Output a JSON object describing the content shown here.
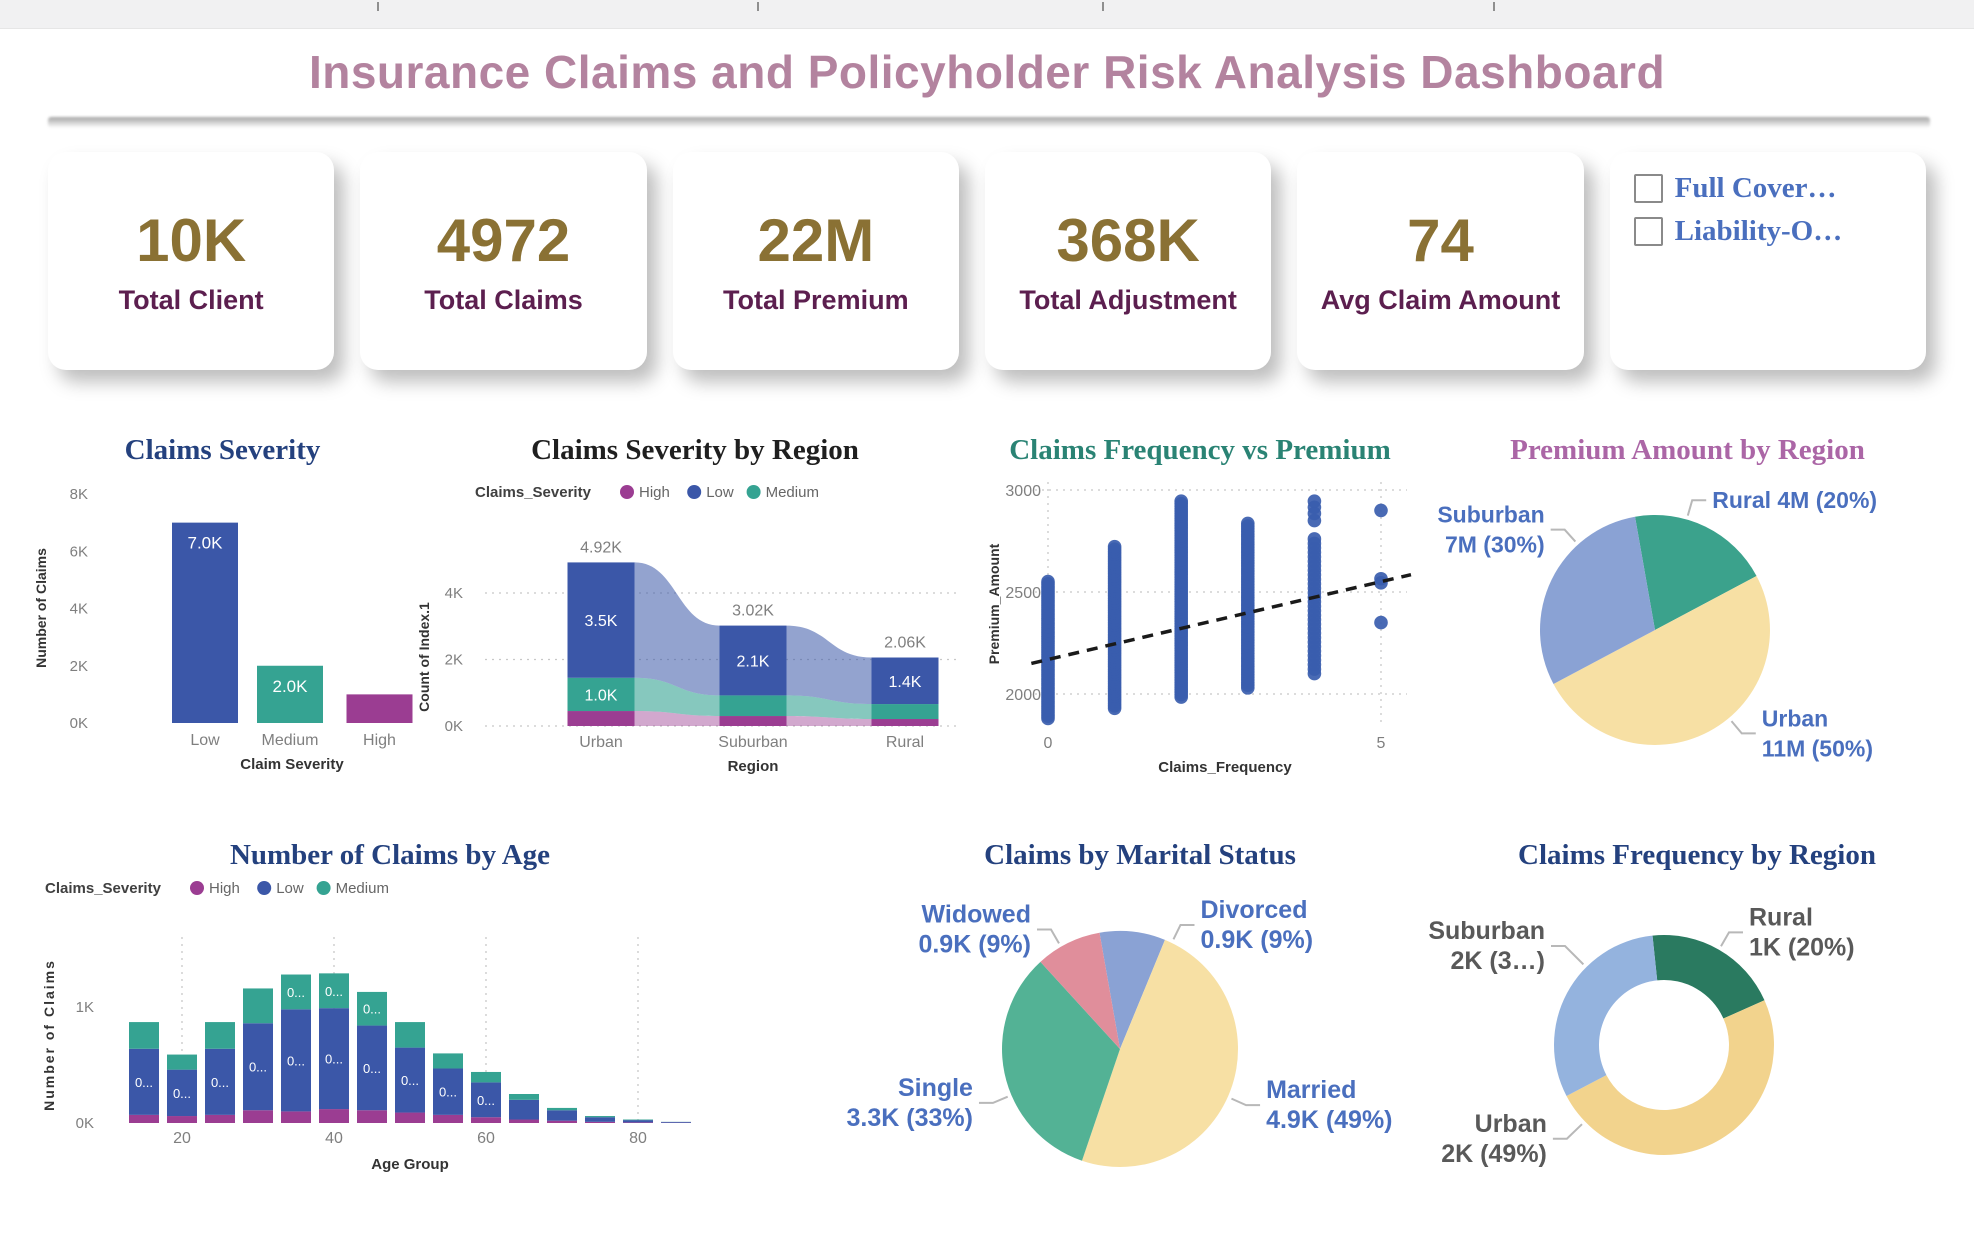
{
  "window": {
    "title": "Insurance Claims and Policyholder Risk Analysis Dashboard",
    "title_color": "#b3839f"
  },
  "kpis": [
    {
      "value": "10K",
      "label": "Total Client"
    },
    {
      "value": "4972",
      "label": "Total Claims"
    },
    {
      "value": "22M",
      "label": "Total Premium"
    },
    {
      "value": "368K",
      "label": "Total Adjustment"
    },
    {
      "value": "74",
      "label": "Avg Claim Amount"
    }
  ],
  "kpi_style": {
    "value_color": "#8a7134",
    "label_color": "#5c1f4f"
  },
  "filter_panel": {
    "options": [
      {
        "label": "Full Cover…",
        "checked": false
      },
      {
        "label": "Liability-O…",
        "checked": false
      }
    ],
    "label_color": "#4a6fbe"
  },
  "palette": {
    "severity_high": "#9b3d92",
    "severity_low": "#3b57a8",
    "severity_medium": "#35a392",
    "axis_text": "#7f7f7f",
    "axis_title": "#333333",
    "legend_text": "#666666",
    "pie_label_blue": "#4a6fbe",
    "donut_label_gray": "#595959",
    "leader_line": "#b8b8b8"
  },
  "chart_data": [
    {
      "id": "claims-severity",
      "type": "bar",
      "title": "Claims Severity",
      "title_color": "#24417e",
      "xlabel": "Claim Severity",
      "ylabel": "Number of Claims",
      "categories": [
        "Low",
        "Medium",
        "High"
      ],
      "values": [
        7000,
        2000,
        1000
      ],
      "bar_labels": [
        "7.0K",
        "2.0K",
        ""
      ],
      "bar_colors": [
        "#3b57a8",
        "#35a392",
        "#9b3d92"
      ],
      "ylim": [
        0,
        8000
      ],
      "yticks": [
        {
          "v": 0,
          "label": "0K"
        },
        {
          "v": 2000,
          "label": "2K"
        },
        {
          "v": 4000,
          "label": "4K"
        },
        {
          "v": 6000,
          "label": "6K"
        },
        {
          "v": 8000,
          "label": "8K"
        }
      ]
    },
    {
      "id": "claims-severity-by-region",
      "type": "ribbon",
      "title": "Claims Severity by Region",
      "title_color": "#1f1f1f",
      "legend_title": "Claims_Severity",
      "legend": [
        {
          "label": "High",
          "color": "#9b3d92"
        },
        {
          "label": "Low",
          "color": "#3b57a8"
        },
        {
          "label": "Medium",
          "color": "#35a392"
        }
      ],
      "xlabel": "Region",
      "ylabel": "Count of Index.1",
      "categories": [
        "Urban",
        "Suburban",
        "Rural"
      ],
      "totals": [
        "4.92K",
        "3.02K",
        "2.06K"
      ],
      "series": [
        {
          "name": "High",
          "color": "#9b3d92",
          "values": [
            450,
            300,
            210
          ],
          "labels": [
            "",
            "",
            ""
          ]
        },
        {
          "name": "Medium",
          "color": "#35a392",
          "values": [
            1000,
            620,
            450
          ],
          "labels": [
            "1.0K",
            "",
            ""
          ]
        },
        {
          "name": "Low",
          "color": "#3b57a8",
          "values": [
            3470,
            2100,
            1400
          ],
          "labels": [
            "3.5K",
            "2.1K",
            "1.4K"
          ]
        }
      ],
      "ylim": [
        0,
        5200
      ],
      "yticks": [
        {
          "v": 0,
          "label": "0K"
        },
        {
          "v": 2000,
          "label": "2K"
        },
        {
          "v": 4000,
          "label": "4K"
        }
      ]
    },
    {
      "id": "freq-vs-premium",
      "type": "scatter",
      "title": "Claims Frequency vs Premium",
      "title_color": "#2a8374",
      "xlabel": "Claims_Frequency",
      "ylabel": "Premium_Amount",
      "xlim": [
        -0.45,
        5.6
      ],
      "ylim": [
        1840,
        3060
      ],
      "xticks": [
        {
          "v": 0,
          "label": "0"
        },
        {
          "v": 5,
          "label": "5"
        }
      ],
      "yticks": [
        {
          "v": 2000,
          "label": "2000"
        },
        {
          "v": 2500,
          "label": "2500"
        },
        {
          "v": 3000,
          "label": "3000"
        }
      ],
      "dot_color": "#3a5dae",
      "columns": [
        {
          "x": 0,
          "ymin": 1880,
          "ymax": 2555,
          "step": 11
        },
        {
          "x": 1,
          "ymin": 1930,
          "ymax": 2725,
          "step": 12
        },
        {
          "x": 2,
          "ymin": 1985,
          "ymax": 2950,
          "step": 12
        },
        {
          "x": 3,
          "ymin": 2030,
          "ymax": 2845,
          "step": 13
        },
        {
          "x": 4,
          "ymin": 2100,
          "ymax": 2760,
          "step": 22
        }
      ],
      "extra_points": [
        {
          "x": 4,
          "y": 2850
        },
        {
          "x": 4,
          "y": 2885
        },
        {
          "x": 4,
          "y": 2915
        },
        {
          "x": 4,
          "y": 2945
        },
        {
          "x": 5,
          "y": 2350
        },
        {
          "x": 5,
          "y": 2545
        },
        {
          "x": 5,
          "y": 2565
        },
        {
          "x": 5,
          "y": 2900
        }
      ],
      "trendline": {
        "x1": -0.25,
        "y1": 2150,
        "x2": 5.45,
        "y2": 2585
      }
    },
    {
      "id": "premium-by-region",
      "type": "pie",
      "title": "Premium Amount by Region",
      "title_color": "#ab66a6",
      "label_color": "#4a6fbe",
      "start_angle": -10,
      "slices": [
        {
          "name": "Rural",
          "lines": [
            "Rural 4M (20%)"
          ],
          "value": "4M",
          "pct": 20,
          "color": "#3ba28c",
          "label_angle": 16,
          "label_r": 135
        },
        {
          "name": "Urban",
          "lines": [
            "Urban",
            "11M (50%)"
          ],
          "value": "11M",
          "pct": 50,
          "color": "#f7e0a4",
          "label_angle": 140,
          "label_r": 135
        },
        {
          "name": "Suburban",
          "lines": [
            "Suburban",
            "7M (30%)"
          ],
          "value": "7M",
          "pct": 30,
          "color": "#8aa2d4",
          "label_angle": 318,
          "label_r": 135
        }
      ]
    },
    {
      "id": "claims-by-age",
      "type": "stacked-bar",
      "title": "Number of Claims by Age",
      "title_color": "#24417e",
      "legend_title": "Claims_Severity",
      "legend": [
        {
          "label": "High",
          "color": "#9b3d92"
        },
        {
          "label": "Low",
          "color": "#3b57a8"
        },
        {
          "label": "Medium",
          "color": "#35a392"
        }
      ],
      "xlabel": "Age Group",
      "ylabel": "Number of Claims",
      "ylim": [
        0,
        1450
      ],
      "yticks": [
        {
          "v": 0,
          "label": "0K"
        },
        {
          "v": 1000,
          "label": "1K"
        }
      ],
      "xticks": [
        {
          "index": 1,
          "label": "20"
        },
        {
          "index": 5,
          "label": "40"
        },
        {
          "index": 9,
          "label": "60"
        },
        {
          "index": 13,
          "label": "80"
        }
      ],
      "series": [
        {
          "name": "High",
          "color": "#9b3d92",
          "values": [
            70,
            60,
            70,
            110,
            100,
            120,
            110,
            90,
            70,
            50,
            30,
            20,
            10,
            5,
            2
          ]
        },
        {
          "name": "Low",
          "color": "#3b57a8",
          "values": [
            570,
            400,
            570,
            750,
            880,
            870,
            730,
            560,
            400,
            300,
            170,
            90,
            40,
            20,
            7
          ]
        },
        {
          "name": "Medium",
          "color": "#35a392",
          "values": [
            230,
            130,
            230,
            300,
            300,
            300,
            290,
            220,
            130,
            90,
            50,
            20,
            10,
            5,
            1
          ]
        }
      ],
      "segment_label_text": "0...",
      "low_label_bars": [
        0,
        1,
        2,
        3,
        4,
        5,
        6,
        7,
        8,
        9
      ],
      "medium_label_bars": [
        4,
        5,
        6
      ]
    },
    {
      "id": "claims-by-marital",
      "type": "pie",
      "title": "Claims by Marital Status",
      "title_color": "#24417e",
      "label_color": "#4a6fbe",
      "start_angle": -10,
      "slices": [
        {
          "name": "Divorced",
          "lines": [
            "Divorced",
            "0.9K (9%)"
          ],
          "value": "0.9K",
          "pct": 9,
          "color": "#8aa2d4",
          "label_angle": 26,
          "label_r": 138
        },
        {
          "name": "Married",
          "lines": [
            "Married",
            "4.9K (49%)"
          ],
          "value": "4.9K",
          "pct": 49,
          "color": "#f7e0a4",
          "label_angle": 114,
          "label_r": 138
        },
        {
          "name": "Single",
          "lines": [
            "Single",
            "3.3K (33%)"
          ],
          "value": "3.3K",
          "pct": 33,
          "color": "#53b295",
          "label_angle": 247,
          "label_r": 138
        },
        {
          "name": "Widowed",
          "lines": [
            "Widowed",
            "0.9K (9%)"
          ],
          "value": "0.9K",
          "pct": 9,
          "color": "#e08e9b",
          "label_angle": 330,
          "label_r": 138
        }
      ]
    },
    {
      "id": "claims-frequency-by-region",
      "type": "donut",
      "title": "Claims Frequency by Region",
      "title_color": "#24417e",
      "label_color": "#595959",
      "start_angle": -6,
      "inner_ratio": 0.59,
      "slices": [
        {
          "name": "Rural",
          "lines": [
            "Rural",
            "1K (20%)"
          ],
          "value": "1K",
          "pct": 20,
          "color": "#2a7a60",
          "label_angle": 30,
          "label_r": 130
        },
        {
          "name": "Urban",
          "lines": [
            "Urban",
            "2K (49%)"
          ],
          "value": "2K",
          "pct": 49,
          "color": "#f2d38d",
          "label_angle": 226,
          "label_r": 135
        },
        {
          "name": "Suburban",
          "lines": [
            "Suburban",
            "2K (3…)"
          ],
          "value": "2K",
          "pct": 31,
          "color": "#94b3de",
          "label_angle": 315,
          "label_r": 140
        }
      ]
    }
  ]
}
